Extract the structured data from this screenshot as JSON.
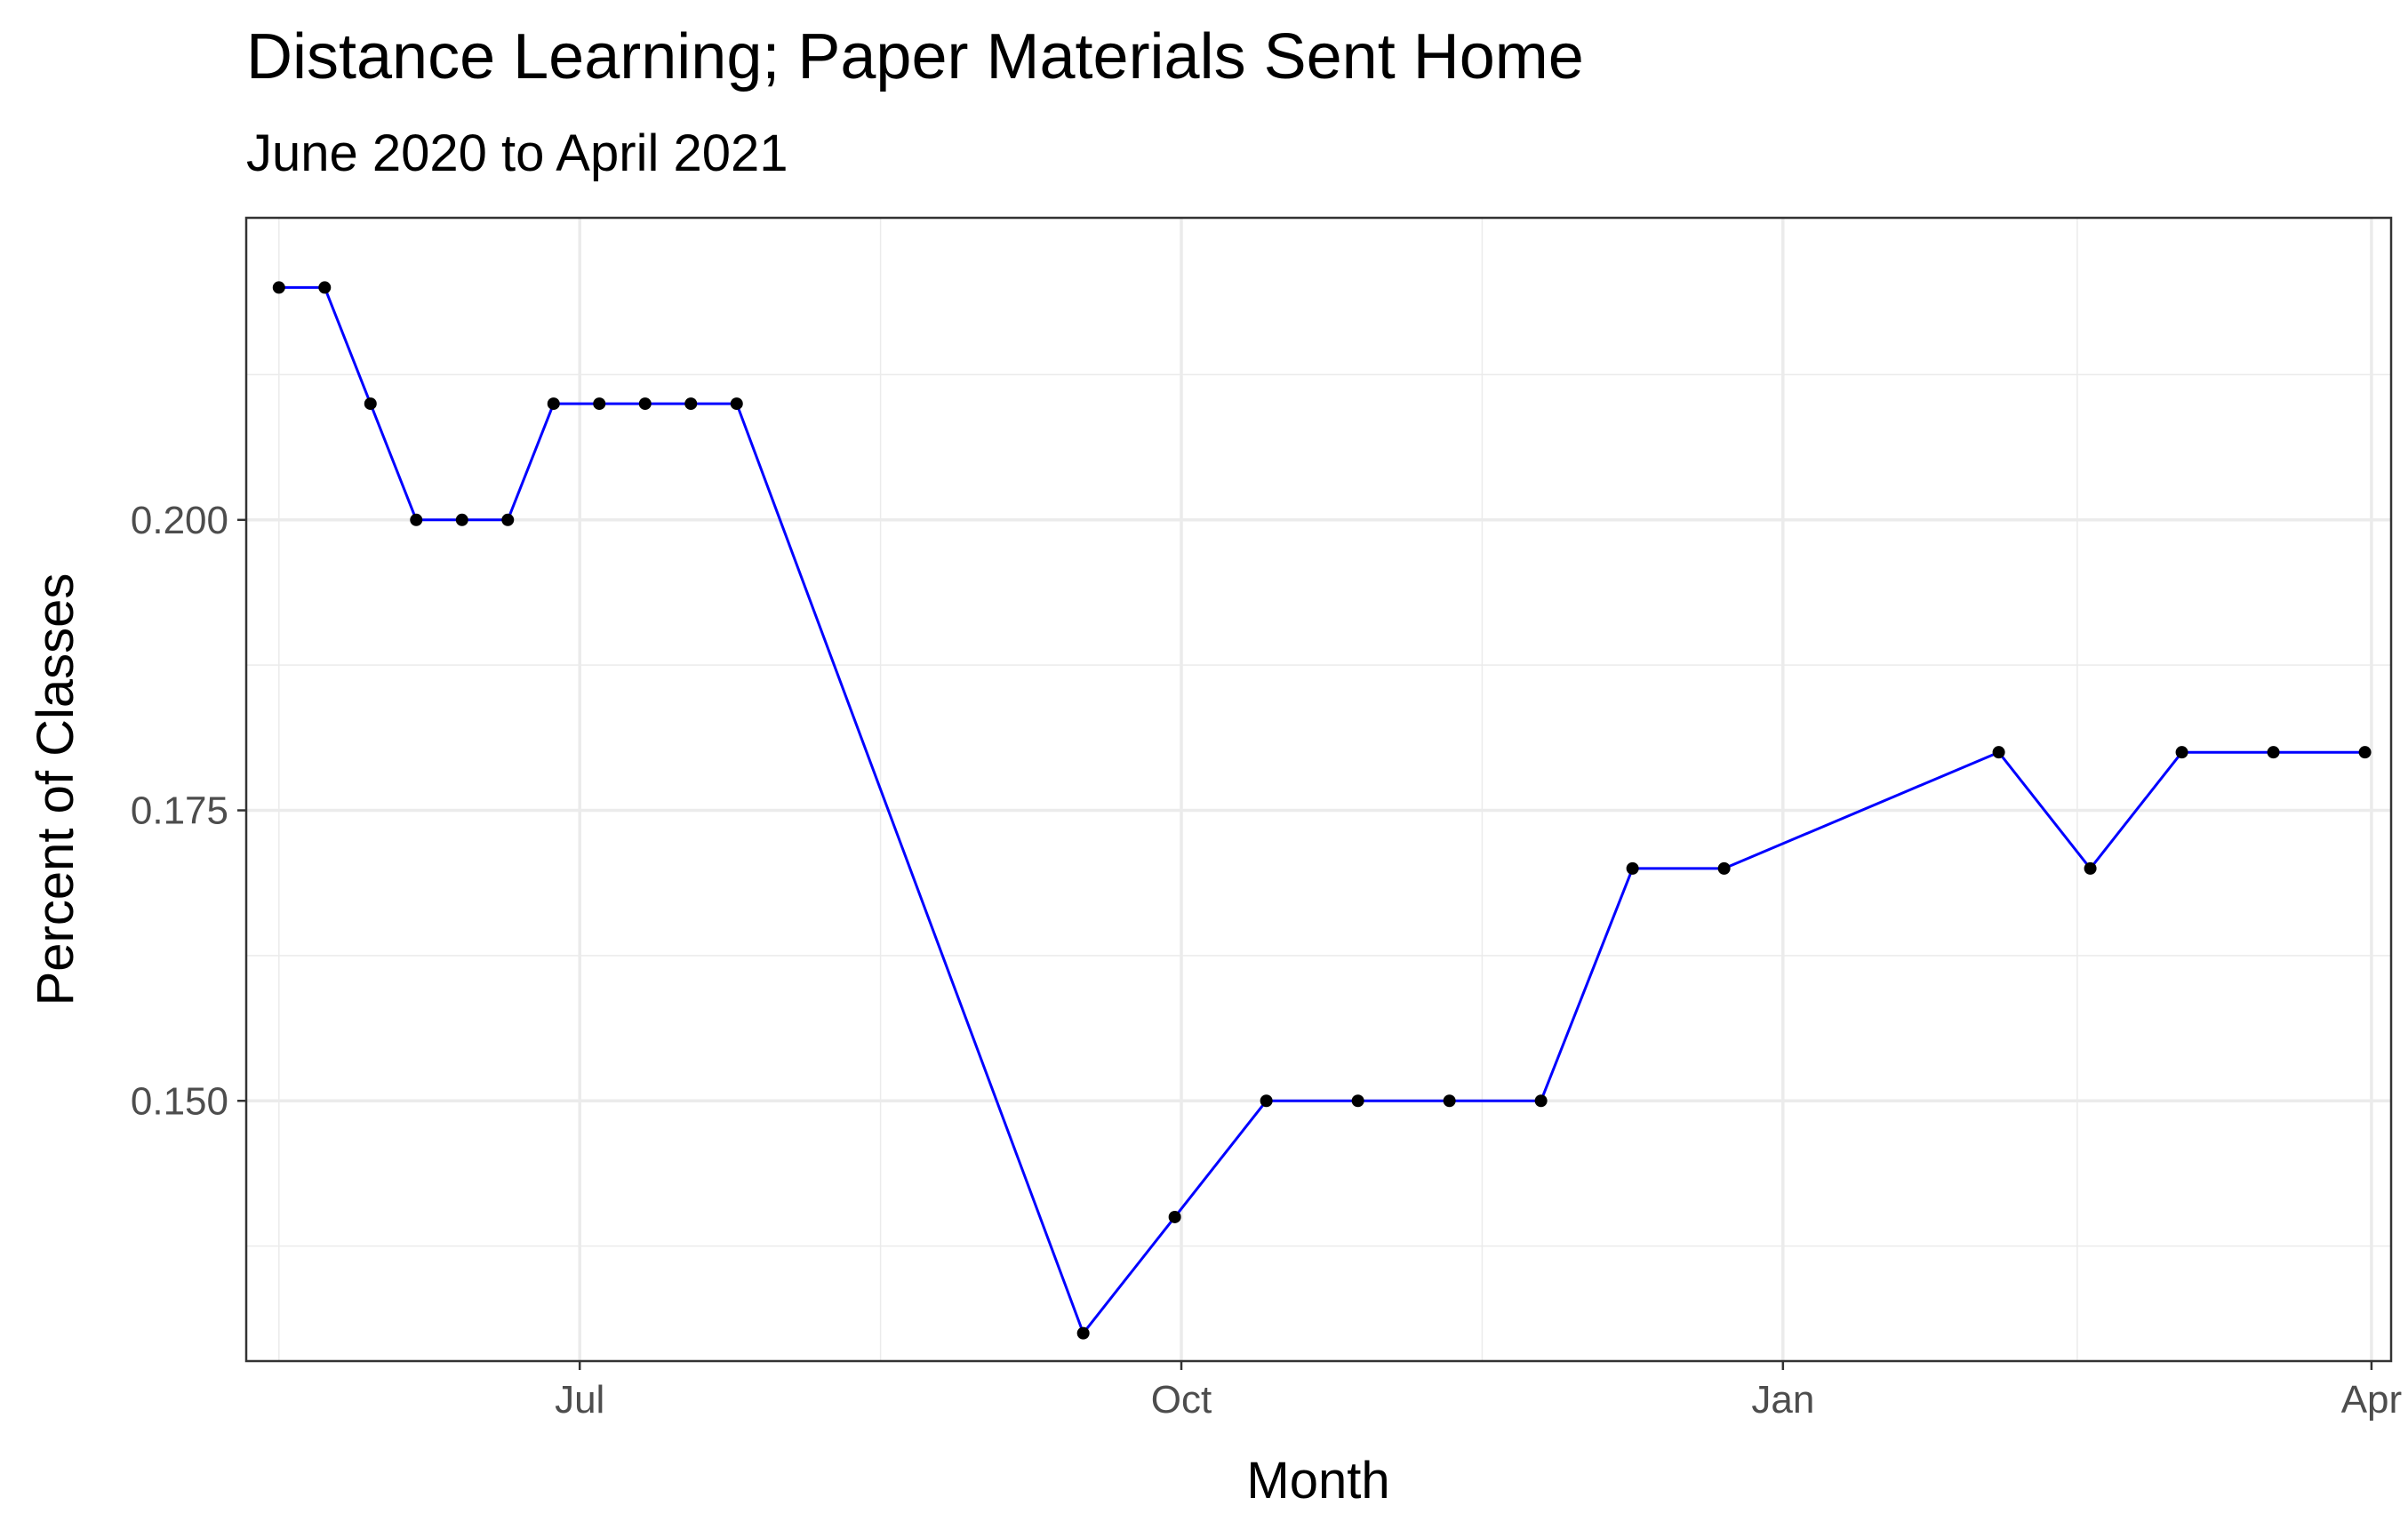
{
  "chart_data": {
    "type": "line",
    "title": "Distance Learning; Paper Materials Sent Home",
    "subtitle": "June 2020 to April 2021",
    "xlabel": "Month",
    "ylabel": "Percent of Classes",
    "x_axis_type": "date",
    "xlim": [
      "2020-05-11",
      "2021-04-04"
    ],
    "ylim": [
      0.1276,
      0.226
    ],
    "x_ticks": [
      {
        "date": "2020-07-01",
        "label": "Jul"
      },
      {
        "date": "2020-10-01",
        "label": "Oct"
      },
      {
        "date": "2021-01-01",
        "label": "Jan"
      },
      {
        "date": "2021-04-01",
        "label": "Apr"
      }
    ],
    "y_ticks": [
      {
        "value": 0.15,
        "label": "0.150"
      },
      {
        "value": 0.175,
        "label": "0.175"
      },
      {
        "value": 0.2,
        "label": "0.200"
      }
    ],
    "y_minor_ticks": [
      0.1375,
      0.1625,
      0.1875,
      0.2125
    ],
    "x_minor_dates": [
      "2020-05-16",
      "2020-08-16",
      "2020-11-16",
      "2021-02-15"
    ],
    "grid": true,
    "legend": "none",
    "series": [
      {
        "color": "#0000ff",
        "point_color": "#000000",
        "points": [
          {
            "x": "2020-05-16",
            "y": 0.22
          },
          {
            "x": "2020-05-23",
            "y": 0.22
          },
          {
            "x": "2020-05-30",
            "y": 0.21
          },
          {
            "x": "2020-06-06",
            "y": 0.2
          },
          {
            "x": "2020-06-13",
            "y": 0.2
          },
          {
            "x": "2020-06-20",
            "y": 0.2
          },
          {
            "x": "2020-06-27",
            "y": 0.21
          },
          {
            "x": "2020-07-04",
            "y": 0.21
          },
          {
            "x": "2020-07-11",
            "y": 0.21
          },
          {
            "x": "2020-07-18",
            "y": 0.21
          },
          {
            "x": "2020-07-25",
            "y": 0.21
          },
          {
            "x": "2020-09-16",
            "y": 0.13
          },
          {
            "x": "2020-09-30",
            "y": 0.14
          },
          {
            "x": "2020-10-14",
            "y": 0.15
          },
          {
            "x": "2020-10-28",
            "y": 0.15
          },
          {
            "x": "2020-11-11",
            "y": 0.15
          },
          {
            "x": "2020-11-25",
            "y": 0.15
          },
          {
            "x": "2020-12-09",
            "y": 0.17
          },
          {
            "x": "2020-12-23",
            "y": 0.17
          },
          {
            "x": "2021-02-03",
            "y": 0.18
          },
          {
            "x": "2021-02-17",
            "y": 0.17
          },
          {
            "x": "2021-03-03",
            "y": 0.18
          },
          {
            "x": "2021-03-17",
            "y": 0.18
          },
          {
            "x": "2021-03-31",
            "y": 0.18
          }
        ]
      }
    ]
  }
}
